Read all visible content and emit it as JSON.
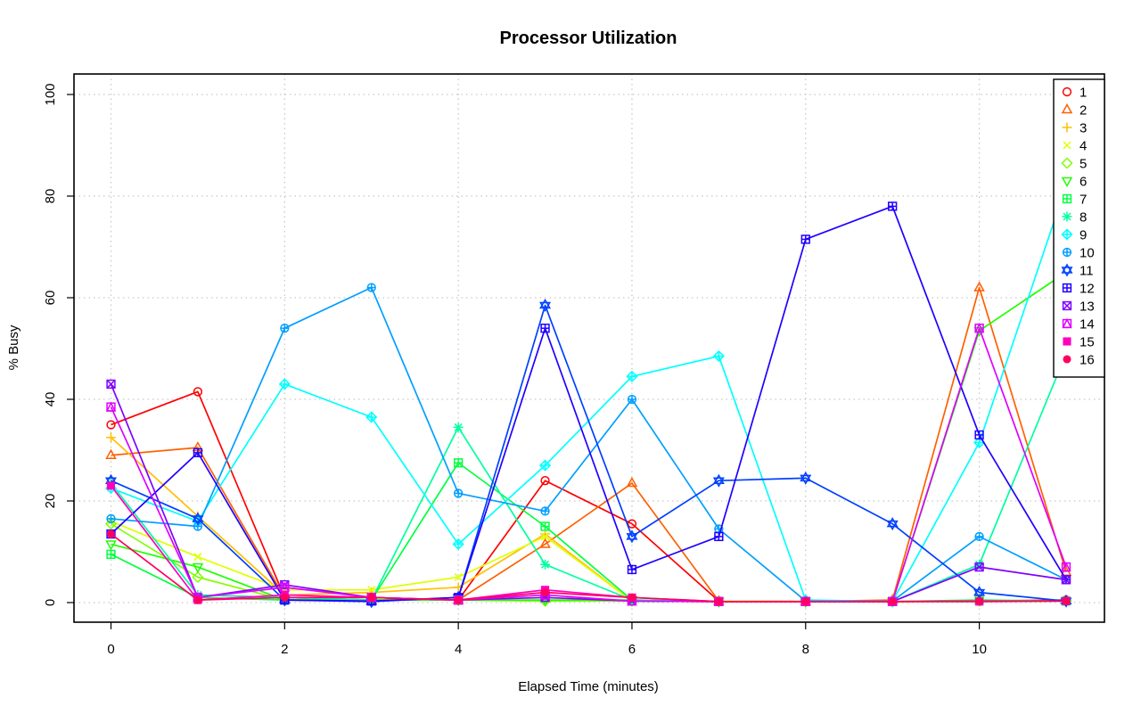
{
  "chart_data": {
    "type": "line",
    "title": "Processor Utilization",
    "xlabel": "Elapsed Time (minutes)",
    "ylabel": "% Busy",
    "xlim": [
      0,
      11
    ],
    "ylim": [
      0,
      100
    ],
    "x_ticks": [
      0,
      2,
      4,
      6,
      8,
      10
    ],
    "x_tick_labels": [
      "0",
      "2",
      "4",
      "6",
      "8",
      "10"
    ],
    "y_ticks": [
      0,
      20,
      40,
      60,
      80,
      100
    ],
    "y_tick_labels": [
      "0",
      "20",
      "40",
      "60",
      "80",
      "100"
    ],
    "grid": true,
    "legend_position": "top-right",
    "x": [
      0,
      1,
      2,
      3,
      4,
      5,
      6,
      7,
      8,
      9,
      10,
      11
    ],
    "series": [
      {
        "name": "1",
        "color": "#FF0000",
        "marker": "circle",
        "values": [
          35,
          41.5,
          1,
          0.5,
          0.5,
          24,
          15.5,
          0.3,
          0.2,
          0.2,
          0.3,
          0.5
        ]
      },
      {
        "name": "2",
        "color": "#FF6000",
        "marker": "triangle-up",
        "values": [
          29,
          30.5,
          1,
          0.5,
          0.5,
          11.5,
          23.5,
          0.3,
          0.2,
          0.5,
          62,
          6
        ]
      },
      {
        "name": "3",
        "color": "#FFBF00",
        "marker": "plus",
        "values": [
          32.5,
          17,
          1.5,
          2,
          3,
          13.5,
          0.3,
          0.3,
          0.2,
          0.2,
          0.2,
          0.3
        ]
      },
      {
        "name": "4",
        "color": "#DFFF00",
        "marker": "cross",
        "values": [
          16,
          9,
          2.5,
          2.5,
          5,
          13,
          0.3,
          0.3,
          0.2,
          0.2,
          0.3,
          0.3
        ]
      },
      {
        "name": "5",
        "color": "#80FF00",
        "marker": "diamond",
        "values": [
          15.5,
          5,
          0.5,
          0.5,
          0.5,
          0.3,
          0.3,
          0.2,
          0.2,
          0.2,
          0.3,
          0.3
        ]
      },
      {
        "name": "6",
        "color": "#20FF00",
        "marker": "triangle-down",
        "values": [
          11.5,
          7,
          0.5,
          0.5,
          0.5,
          0.5,
          0.5,
          0.2,
          0.2,
          0.2,
          53.5,
          65
        ]
      },
      {
        "name": "7",
        "color": "#00FF40",
        "marker": "square-plus",
        "values": [
          9.5,
          1,
          0.5,
          0.5,
          27.5,
          15,
          0.5,
          0.2,
          0.2,
          0.2,
          0.5,
          0.3
        ]
      },
      {
        "name": "8",
        "color": "#00FF9F",
        "marker": "asterisk",
        "values": [
          23.5,
          1.5,
          1,
          0.5,
          34.5,
          7.5,
          0.5,
          0.2,
          0.2,
          0.2,
          7.5,
          49
        ]
      },
      {
        "name": "9",
        "color": "#00FFFF",
        "marker": "diamond-plus",
        "values": [
          22.5,
          16,
          43,
          36.5,
          11.5,
          27,
          44.5,
          48.5,
          0.5,
          0.2,
          31.5,
          82
        ]
      },
      {
        "name": "10",
        "color": "#009FFF",
        "marker": "circle-plus",
        "values": [
          16.5,
          15,
          54,
          62,
          21.5,
          18,
          40,
          14.5,
          0.3,
          0.3,
          13,
          4.5
        ]
      },
      {
        "name": "11",
        "color": "#0040FF",
        "marker": "star-of-david",
        "values": [
          24,
          16.5,
          0.5,
          0.2,
          1,
          58.5,
          13,
          24,
          24.5,
          15.5,
          2,
          0.3
        ]
      },
      {
        "name": "12",
        "color": "#2000FF",
        "marker": "square-plus",
        "values": [
          13.5,
          29.5,
          0.5,
          0.3,
          1,
          54,
          6.5,
          13,
          71.5,
          78,
          33,
          4.5
        ]
      },
      {
        "name": "13",
        "color": "#8000FF",
        "marker": "square-cross",
        "values": [
          43,
          1,
          3.5,
          1,
          0.5,
          1,
          0.3,
          0.2,
          0.2,
          0.2,
          7,
          4.5
        ]
      },
      {
        "name": "14",
        "color": "#DF00FF",
        "marker": "square-triangle",
        "values": [
          38.5,
          1,
          3,
          1,
          0.5,
          1.5,
          0.3,
          0.2,
          0.2,
          0.2,
          54,
          7
        ]
      },
      {
        "name": "15",
        "color": "#FF00BF",
        "marker": "filled-square",
        "values": [
          23,
          0.5,
          1.5,
          1,
          0.5,
          2.5,
          1,
          0.2,
          0.2,
          0.2,
          0.2,
          0.3
        ]
      },
      {
        "name": "16",
        "color": "#FF0060",
        "marker": "filled-circle",
        "values": [
          13.5,
          0.5,
          1,
          1,
          0.5,
          2,
          1,
          0.2,
          0.2,
          0.2,
          0.3,
          0.3
        ]
      }
    ]
  }
}
